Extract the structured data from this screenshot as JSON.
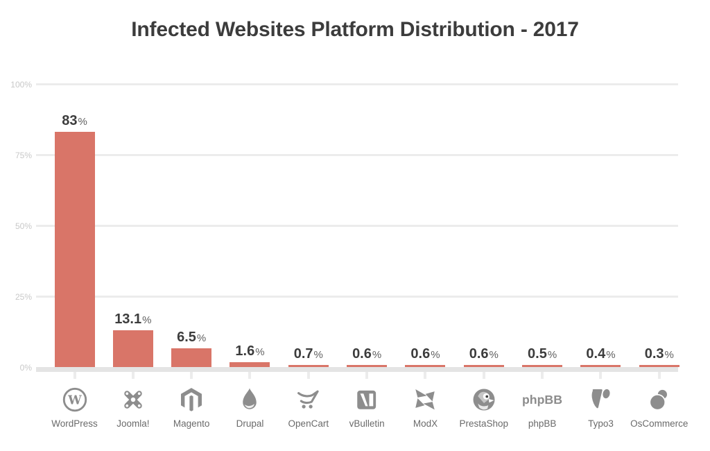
{
  "title": "Infected Websites Platform Distribution - 2017",
  "chart_data": {
    "type": "bar",
    "title": "Infected Websites Platform Distribution - 2017",
    "unit": "%",
    "categories": [
      "WordPress",
      "Joomla!",
      "Magento",
      "Drupal",
      "OpenCart",
      "vBulletin",
      "ModX",
      "PrestaShop",
      "phpBB",
      "Typo3",
      "OsCommerce"
    ],
    "values": [
      83,
      13.1,
      6.5,
      1.6,
      0.7,
      0.6,
      0.6,
      0.6,
      0.5,
      0.4,
      0.3
    ],
    "value_labels": [
      "83",
      "13.1",
      "6.5",
      "1.6",
      "0.7",
      "0.6",
      "0.6",
      "0.6",
      "0.5",
      "0.4",
      "0.3"
    ],
    "icons": [
      "wordpress-icon",
      "joomla-icon",
      "magento-icon",
      "drupal-icon",
      "opencart-icon",
      "vbulletin-icon",
      "modx-icon",
      "prestashop-icon",
      "phpbb-icon",
      "typo3-icon",
      "oscommerce-icon"
    ],
    "xlabel": "",
    "ylabel": "",
    "ylim": [
      0,
      100
    ],
    "yticks": [
      {
        "label": "100%",
        "value": 100
      },
      {
        "label": "75%",
        "value": 75
      },
      {
        "label": "50%",
        "value": 50
      },
      {
        "label": "25%",
        "value": 25
      },
      {
        "label": "0%",
        "value": 0
      }
    ],
    "grid": true,
    "legend": false,
    "bar_color": "#d97568"
  },
  "colors": {
    "bar": "#d97568",
    "title": "#3c3c3c",
    "value_number": "#3c3c3c",
    "value_percent": "#606060",
    "ytick": "#c8c8c8",
    "category": "#6a6a6a",
    "icon": "#8d8d8d",
    "gridline": "#ececec",
    "axis_band": "#e4e4e4",
    "axis_tick": "#ececec",
    "background": "#ffffff"
  }
}
